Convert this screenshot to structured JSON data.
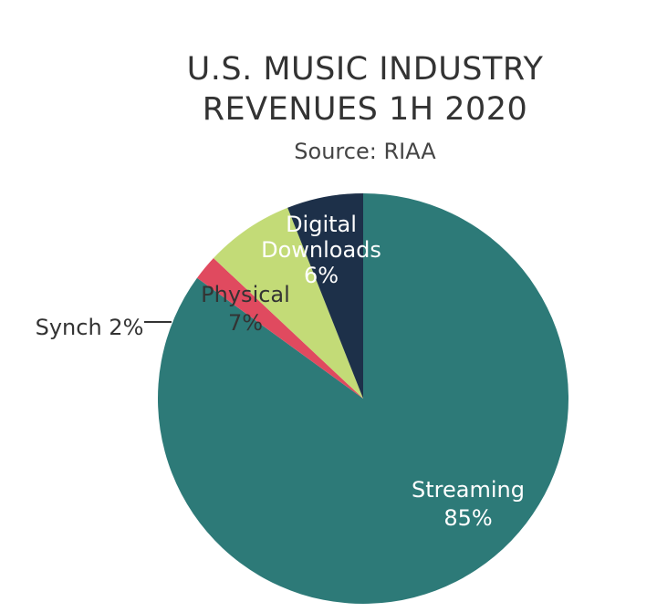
{
  "title_line1": "U.S. MUSIC INDUSTRY",
  "title_line2": "REVENUES 1H 2020",
  "subtitle": "Source: RIAA",
  "chart_data": {
    "type": "pie",
    "title": "U.S. MUSIC INDUSTRY REVENUES 1H 2020",
    "subtitle": "Source: RIAA",
    "slices": [
      {
        "label": "Streaming",
        "value": 85,
        "pct_label": "85%",
        "color": "#2d7a78"
      },
      {
        "label": "Synch",
        "value": 2,
        "pct_label": "2%",
        "color": "#e04a5f"
      },
      {
        "label": "Physical",
        "value": 7,
        "pct_label": "7%",
        "color": "#c3db77"
      },
      {
        "label": "Digital Downloads",
        "value": 6,
        "pct_label": "6%",
        "color": "#1d3049"
      }
    ],
    "label_texts": {
      "streaming": [
        "Streaming",
        "85%"
      ],
      "synch": [
        "Synch 2%"
      ],
      "physical": [
        "Physical",
        "7%"
      ],
      "digital": [
        "Digital",
        "Downloads",
        "6%"
      ]
    }
  }
}
